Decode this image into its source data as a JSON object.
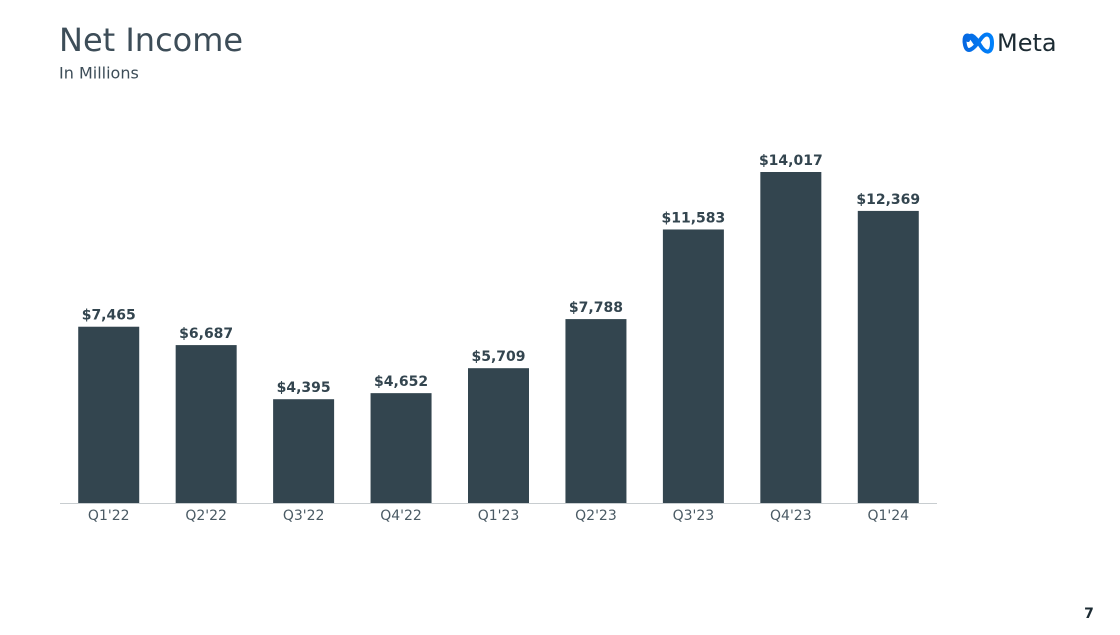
{
  "chart_data": {
    "type": "bar",
    "title": "Net Income",
    "subtitle": "In Millions",
    "categories": [
      "Q1'22",
      "Q2'22",
      "Q3'22",
      "Q4'22",
      "Q1'23",
      "Q2'23",
      "Q3'23",
      "Q4'23",
      "Q1'24"
    ],
    "values": [
      7465,
      6687,
      4395,
      4652,
      5709,
      7788,
      11583,
      14017,
      12369
    ],
    "value_labels": [
      "$7,465",
      "$6,687",
      "$4,395",
      "$4,652",
      "$5,709",
      "$7,788",
      "$11,583",
      "$14,017",
      "$12,369"
    ],
    "color": "#33454f"
  },
  "brand": "Meta",
  "page_number": "7"
}
